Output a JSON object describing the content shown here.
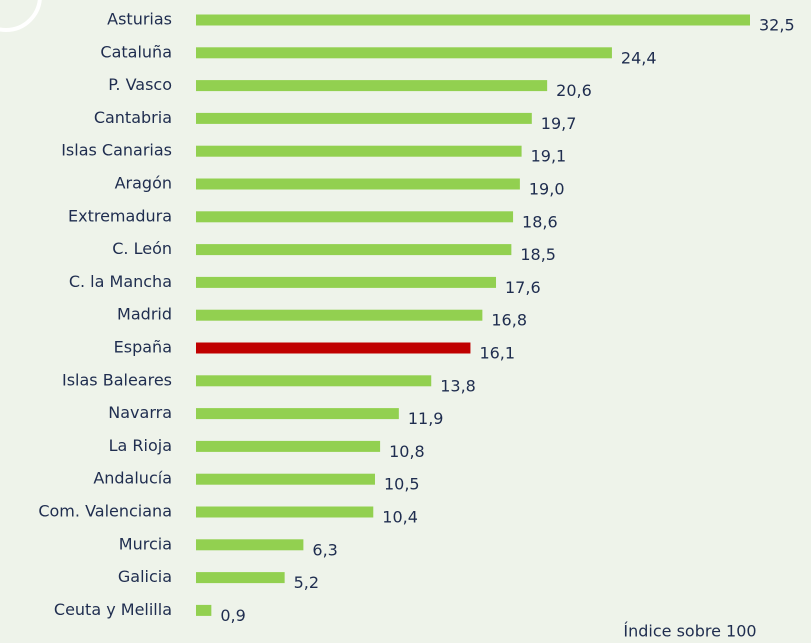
{
  "chart_data": {
    "type": "barh",
    "categories": [
      "Asturias",
      "Cataluña",
      "P. Vasco",
      "Cantabria",
      "Islas Canarias",
      "Aragón",
      "Extremadura",
      "C. León",
      "C. la Mancha",
      "Madrid",
      "España",
      "Islas Baleares",
      "Navarra",
      "La Rioja",
      "Andalucía",
      "Com. Valenciana",
      "Murcia",
      "Galicia",
      "Ceuta y Melilla"
    ],
    "values": [
      32.5,
      24.4,
      20.6,
      19.7,
      19.1,
      19.0,
      18.6,
      18.5,
      17.6,
      16.8,
      16.1,
      13.8,
      11.9,
      10.8,
      10.5,
      10.4,
      6.3,
      5.2,
      0.9
    ],
    "value_labels": [
      "32,5",
      "24,4",
      "20,6",
      "19,7",
      "19,1",
      "19,0",
      "18,6",
      "18,5",
      "17,6",
      "16,8",
      "16,1",
      "13,8",
      "11,9",
      "10,8",
      "10,5",
      "10,4",
      "6,3",
      "5,2",
      "0,9"
    ],
    "colors": [
      "#92d050",
      "#92d050",
      "#92d050",
      "#92d050",
      "#92d050",
      "#92d050",
      "#92d050",
      "#92d050",
      "#92d050",
      "#92d050",
      "#c00000",
      "#92d050",
      "#92d050",
      "#92d050",
      "#92d050",
      "#92d050",
      "#92d050",
      "#92d050",
      "#92d050"
    ],
    "annotation": "Índice sobre 100"
  }
}
